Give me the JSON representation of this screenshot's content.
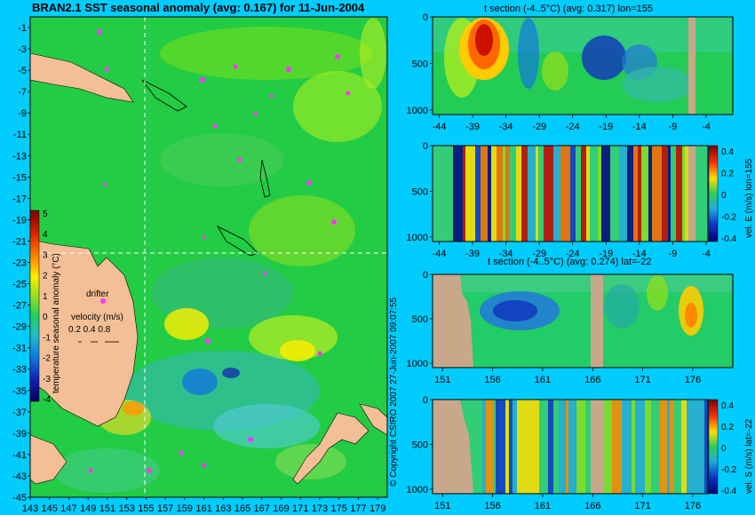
{
  "page_title": "BRAN2.1 SST seasonal anomaly (avg: 0.167) for 11-Jun-2004",
  "copyright": "© Copyright CSIRO 2007  27-Jun-2007 09:07:55",
  "colors": {
    "background": "#00ccff",
    "land": "#f4bf96",
    "section_land": "#c8a88a",
    "drifter": "#ff33ff",
    "anomaly_base": "#22cc44"
  },
  "chart_data": [
    {
      "type": "heatmap",
      "panel": "map",
      "xlabel": "",
      "ylabel": "",
      "x_ticks": [
        "143",
        "145",
        "147",
        "149",
        "151",
        "153",
        "155",
        "157",
        "159",
        "161",
        "163",
        "165",
        "167",
        "169",
        "171",
        "173",
        "175",
        "177",
        "179"
      ],
      "y_ticks": [
        "-1",
        "-3",
        "-5",
        "-7",
        "-9",
        "-11",
        "-13",
        "-15",
        "-17",
        "-19",
        "-21",
        "-23",
        "-25",
        "-27",
        "-29",
        "-31",
        "-33",
        "-35",
        "-37",
        "-39",
        "-41",
        "-43",
        "-45"
      ],
      "xlim": [
        143,
        180
      ],
      "ylim": [
        -45,
        0
      ],
      "section_lines": {
        "lon": 155,
        "lat": -22
      },
      "colorbar": {
        "label": "temperature seasonal anomaly (°C)",
        "ticks": [
          "5",
          "4",
          "3",
          "2",
          "1",
          "0",
          "-1",
          "-2",
          "-3",
          "-4"
        ],
        "range": [
          -4,
          5
        ]
      },
      "legend": {
        "drifter_label": "drifter",
        "velocity_label": "velocity (m/s)",
        "velocity_values": "0.2 0.4 0.8"
      }
    },
    {
      "type": "heatmap",
      "panel": "t-section-lon",
      "title": "t section (-4..5°C) (avg: 0.317) lon=155",
      "x_ticks": [
        "-44",
        "-39",
        "-34",
        "-29",
        "-24",
        "-19",
        "-14",
        "-9",
        "-4"
      ],
      "y_ticks": [
        "0",
        "500",
        "1000"
      ],
      "xlim": [
        -45,
        0
      ],
      "ylim": [
        1050,
        0
      ]
    },
    {
      "type": "heatmap",
      "panel": "u-section-lon",
      "x_ticks": [
        "-44",
        "-39",
        "-34",
        "-29",
        "-24",
        "-19",
        "-14",
        "-9",
        "-4"
      ],
      "y_ticks": [
        "0",
        "500",
        "1000"
      ],
      "xlim": [
        -45,
        0
      ],
      "ylim": [
        1050,
        0
      ],
      "colorbar": {
        "label": "vel. E (m/s) lon=155",
        "ticks": [
          "0.4",
          "0.2",
          "0",
          "-0.2",
          "-0.4"
        ],
        "range": [
          -0.4,
          0.4
        ]
      }
    },
    {
      "type": "heatmap",
      "panel": "t-section-lat",
      "title": "t section (-4..5°C) (avg: 0.274) lat=-22",
      "x_ticks": [
        "151",
        "156",
        "161",
        "166",
        "171",
        "176"
      ],
      "y_ticks": [
        "0",
        "500",
        "1000"
      ],
      "xlim": [
        150,
        180
      ],
      "ylim": [
        1050,
        0
      ]
    },
    {
      "type": "heatmap",
      "panel": "v-section-lat",
      "x_ticks": [
        "151",
        "156",
        "161",
        "166",
        "171",
        "176"
      ],
      "y_ticks": [
        "0",
        "500",
        "1000"
      ],
      "xlim": [
        150,
        180
      ],
      "ylim": [
        1050,
        0
      ],
      "colorbar": {
        "label": "vel. S (m/s) lat=-22",
        "ticks": [
          "0.4",
          "0.2",
          "0",
          "-0.2",
          "-0.4"
        ],
        "range": [
          -0.4,
          0.4
        ]
      }
    }
  ]
}
